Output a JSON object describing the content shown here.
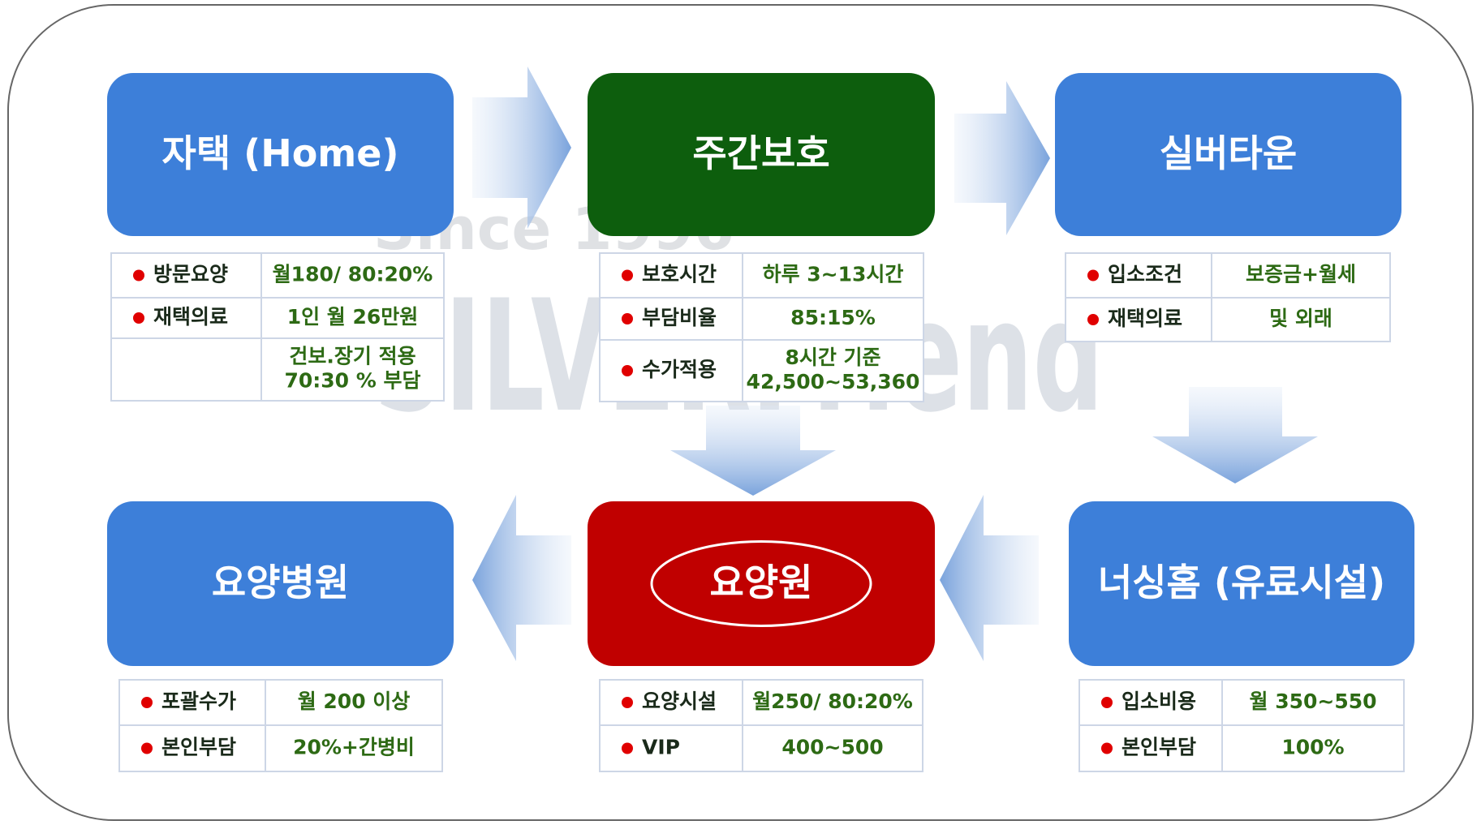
{
  "watermark": {
    "since": "Since 1996",
    "brand": "SILVERFriend"
  },
  "nodes": [
    {
      "label": "자택 (Home)",
      "style": "blue",
      "rows": [
        {
          "label": "방문요양",
          "value": [
            "월180/ 80:20%"
          ]
        },
        {
          "label": "재택의료",
          "value": [
            "1인 월 26만원"
          ]
        },
        {
          "value": [
            "건보.장기 적용",
            "70:30 % 부담"
          ]
        }
      ]
    },
    {
      "label": "주간보호",
      "style": "green",
      "rows": [
        {
          "label": "보호시간",
          "value": [
            "하루 3~13시간"
          ]
        },
        {
          "label": "부담비율",
          "value": [
            "85:15%"
          ]
        },
        {
          "label": "수가적용",
          "value": [
            "8시간 기준",
            "42,500~53,360"
          ]
        }
      ]
    },
    {
      "label": "실버타운",
      "style": "blue",
      "rows": [
        {
          "label": "입소조건",
          "value": [
            "보증금+월세"
          ]
        },
        {
          "label": "재택의료",
          "value": [
            "및 외래"
          ]
        }
      ]
    },
    {
      "label": "요양병원",
      "style": "blue",
      "rows": [
        {
          "label": "포괄수가",
          "value": [
            "월 200 이상"
          ]
        },
        {
          "label": "본인부담",
          "value": [
            "20%+간병비"
          ]
        }
      ]
    },
    {
      "label": "요양원",
      "style": "red",
      "rows": [
        {
          "label": "요양시설",
          "value": [
            "월250/ 80:20%"
          ]
        },
        {
          "label": "VIP",
          "value": [
            "400~500"
          ]
        }
      ]
    },
    {
      "label": "너싱홈 (유료시설)",
      "style": "blue",
      "rows": [
        {
          "label": "입소비용",
          "value": [
            "월 350~550"
          ]
        },
        {
          "label": "본인부담",
          "value": [
            "100%"
          ]
        }
      ]
    }
  ]
}
